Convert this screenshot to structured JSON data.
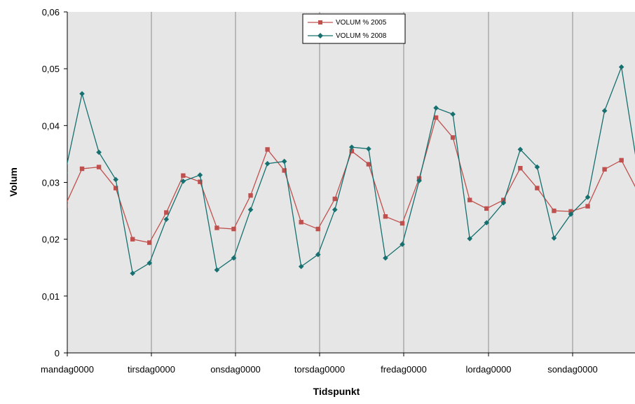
{
  "chart_data": {
    "type": "line",
    "xlabel": "Tidspunkt",
    "ylabel": "Volum",
    "ylim": [
      0,
      0.06
    ],
    "y_ticks": [
      "0",
      "0,01",
      "0,02",
      "0,03",
      "0,04",
      "0,05",
      "0,06"
    ],
    "x_tick_labels": [
      "mandag0000",
      "tirsdag0000",
      "onsdag0000",
      "torsdag0000",
      "fredag0000",
      "lordag0000",
      "sondag0000"
    ],
    "grid": "vertical lines at each day",
    "legend_position": "top-center",
    "colors": {
      "plot_background": "#e6e6e6",
      "series_2005": "#c0504d",
      "series_2008": "#16706f"
    },
    "series": [
      {
        "name": "VOLUM % 2005",
        "color": "#c0504d",
        "marker": "square",
        "values": [
          0.0259,
          0.0324,
          0.0327,
          0.029,
          0.02,
          0.0194,
          0.0247,
          0.0312,
          0.0301,
          0.022,
          0.0218,
          0.0277,
          0.0358,
          0.0321,
          0.023,
          0.0218,
          0.0271,
          0.0355,
          0.0332,
          0.024,
          0.0228,
          0.0307,
          0.0414,
          0.0379,
          0.0269,
          0.0254,
          0.0269,
          0.0325,
          0.029,
          0.025,
          0.0249,
          0.0258,
          0.0323,
          0.0339,
          0.0282
        ]
      },
      {
        "name": "VOLUM % 2008",
        "color": "#16706f",
        "marker": "diamond",
        "values": [
          0.0317,
          0.0456,
          0.0353,
          0.0305,
          0.014,
          0.0158,
          0.0235,
          0.0302,
          0.0313,
          0.0146,
          0.0167,
          0.0252,
          0.0333,
          0.0337,
          0.0152,
          0.0173,
          0.0252,
          0.0362,
          0.0359,
          0.0167,
          0.0191,
          0.0303,
          0.0431,
          0.042,
          0.0201,
          0.0229,
          0.0264,
          0.0358,
          0.0327,
          0.0202,
          0.0244,
          0.0274,
          0.0426,
          0.0503,
          0.0317
        ]
      }
    ]
  }
}
